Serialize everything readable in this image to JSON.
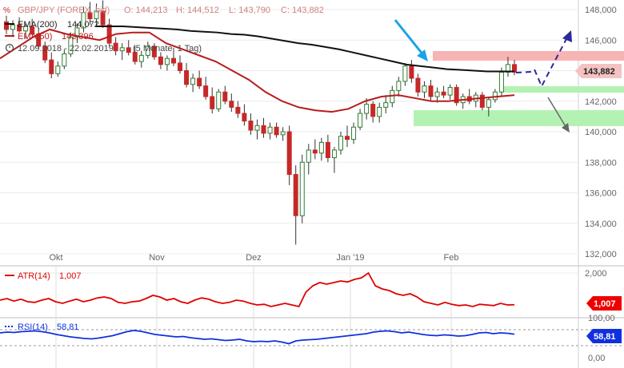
{
  "header": {
    "symbol_line": "GBP/JPY (FOREX, bid)",
    "open": "O: 144,213",
    "high": "H: 144,512",
    "low": "L: 143,790",
    "close": "C: 143,882",
    "ema200_label": "EMA(200)",
    "ema200_value": "144,072",
    "ema50_label": "EMA(50)",
    "ema50_value": "142,396",
    "date_range": "12.09.2018 - 22.02.2019",
    "period": "(5 Monate, 1 Tag)"
  },
  "colors": {
    "up": "#2e7d32",
    "down": "#c62828",
    "ema200": "#111111",
    "ema50": "#b71c1c",
    "atr": "#e00000",
    "rsi": "#1030e0",
    "resistance_zone": "#f7b4b4",
    "support_zone": "#b4f2b4",
    "arrow_cyan": "#1aa3e8",
    "arrow_forecast": "#2a2a9a",
    "arrow_grey": "#666666"
  },
  "chart_data": [
    {
      "type": "candlestick",
      "xlabels": [
        "Okt",
        "Nov",
        "Dez",
        "Jan '19",
        "Feb"
      ],
      "ylabels": [
        "148,000",
        "146,000",
        "144,000",
        "142,000",
        "140,000",
        "138,000",
        "136,000",
        "134,000",
        "132,000"
      ],
      "ylim": [
        132,
        148
      ],
      "last_price": "143,882",
      "series": [
        {
          "name": "EMA(200)",
          "values": [
            146.9,
            146.9,
            146.9,
            146.85,
            146.8,
            146.75,
            146.7,
            146.6,
            146.55,
            146.5,
            146.4,
            146.35,
            146.25,
            146.1,
            145.95,
            145.8,
            145.7,
            145.55,
            145.4,
            145.2,
            145.0,
            144.8,
            144.6,
            144.4,
            144.3,
            144.2,
            144.1,
            144.05,
            144.0,
            143.95,
            143.95,
            143.95
          ]
        },
        {
          "name": "EMA(50)",
          "values": [
            144.8,
            145.5,
            146.2,
            146.7,
            146.4,
            146.2,
            146.0,
            146.4,
            146.5,
            146.5,
            145.8,
            145.4,
            145.0,
            144.6,
            144.0,
            143.4,
            142.6,
            142.0,
            141.6,
            141.4,
            141.3,
            141.5,
            142.0,
            142.3,
            142.4,
            142.2,
            142.0,
            142.0,
            142.1,
            142.2,
            142.3,
            142.4
          ]
        }
      ],
      "candles": [
        {
          "o": 147.2,
          "h": 147.6,
          "l": 146.4,
          "c": 146.7
        },
        {
          "o": 146.7,
          "h": 147.3,
          "l": 146.2,
          "c": 147.0
        },
        {
          "o": 147.0,
          "h": 147.5,
          "l": 146.5,
          "c": 146.6
        },
        {
          "o": 146.6,
          "h": 147.1,
          "l": 146.1,
          "c": 146.9
        },
        {
          "o": 146.9,
          "h": 147.4,
          "l": 146.3,
          "c": 146.4
        },
        {
          "o": 146.4,
          "h": 146.8,
          "l": 145.5,
          "c": 145.6
        },
        {
          "o": 145.6,
          "h": 145.9,
          "l": 144.5,
          "c": 144.7
        },
        {
          "o": 144.7,
          "h": 145.2,
          "l": 143.5,
          "c": 143.8
        },
        {
          "o": 143.8,
          "h": 144.6,
          "l": 143.6,
          "c": 144.3
        },
        {
          "o": 144.3,
          "h": 145.4,
          "l": 144.1,
          "c": 145.1
        },
        {
          "o": 145.1,
          "h": 146.5,
          "l": 144.9,
          "c": 146.2
        },
        {
          "o": 146.2,
          "h": 147.1,
          "l": 145.8,
          "c": 146.8
        },
        {
          "o": 146.8,
          "h": 148.2,
          "l": 146.5,
          "c": 147.8
        },
        {
          "o": 147.8,
          "h": 148.5,
          "l": 147.0,
          "c": 147.4
        },
        {
          "o": 147.4,
          "h": 148.4,
          "l": 146.9,
          "c": 147.9
        },
        {
          "o": 147.9,
          "h": 148.6,
          "l": 146.8,
          "c": 147.0
        },
        {
          "o": 147.0,
          "h": 147.4,
          "l": 145.6,
          "c": 145.8
        },
        {
          "o": 145.8,
          "h": 146.2,
          "l": 145.0,
          "c": 145.3
        },
        {
          "o": 145.3,
          "h": 145.8,
          "l": 144.7,
          "c": 145.5
        },
        {
          "o": 145.5,
          "h": 146.0,
          "l": 145.0,
          "c": 145.2
        },
        {
          "o": 145.2,
          "h": 145.6,
          "l": 144.4,
          "c": 144.6
        },
        {
          "o": 144.6,
          "h": 145.3,
          "l": 144.2,
          "c": 145.0
        },
        {
          "o": 145.0,
          "h": 145.9,
          "l": 144.8,
          "c": 145.6
        },
        {
          "o": 145.6,
          "h": 145.8,
          "l": 144.7,
          "c": 144.9
        },
        {
          "o": 144.9,
          "h": 145.2,
          "l": 144.1,
          "c": 144.4
        },
        {
          "o": 144.4,
          "h": 145.0,
          "l": 144.0,
          "c": 144.8
        },
        {
          "o": 144.8,
          "h": 145.5,
          "l": 144.3,
          "c": 144.5
        },
        {
          "o": 144.5,
          "h": 145.0,
          "l": 143.8,
          "c": 144.0
        },
        {
          "o": 144.0,
          "h": 144.5,
          "l": 142.9,
          "c": 143.1
        },
        {
          "o": 143.1,
          "h": 143.8,
          "l": 142.6,
          "c": 143.5
        },
        {
          "o": 143.5,
          "h": 144.0,
          "l": 142.8,
          "c": 143.0
        },
        {
          "o": 143.0,
          "h": 143.6,
          "l": 142.1,
          "c": 142.3
        },
        {
          "o": 142.3,
          "h": 142.9,
          "l": 141.2,
          "c": 141.5
        },
        {
          "o": 141.5,
          "h": 142.8,
          "l": 141.3,
          "c": 142.6
        },
        {
          "o": 142.6,
          "h": 143.0,
          "l": 141.8,
          "c": 142.0
        },
        {
          "o": 142.0,
          "h": 142.5,
          "l": 141.3,
          "c": 141.6
        },
        {
          "o": 141.6,
          "h": 142.0,
          "l": 140.9,
          "c": 141.2
        },
        {
          "o": 141.2,
          "h": 141.8,
          "l": 140.4,
          "c": 140.7
        },
        {
          "o": 140.7,
          "h": 141.2,
          "l": 139.8,
          "c": 140.1
        },
        {
          "o": 140.1,
          "h": 140.8,
          "l": 139.5,
          "c": 140.4
        },
        {
          "o": 140.4,
          "h": 140.9,
          "l": 139.6,
          "c": 139.9
        },
        {
          "o": 139.9,
          "h": 140.6,
          "l": 139.5,
          "c": 140.3
        },
        {
          "o": 140.3,
          "h": 140.6,
          "l": 139.6,
          "c": 139.8
        },
        {
          "o": 139.8,
          "h": 140.3,
          "l": 139.4,
          "c": 140.0
        },
        {
          "o": 140.0,
          "h": 140.4,
          "l": 136.5,
          "c": 137.2
        },
        {
          "o": 137.2,
          "h": 137.8,
          "l": 132.6,
          "c": 134.5
        },
        {
          "o": 134.5,
          "h": 138.5,
          "l": 134.0,
          "c": 138.0
        },
        {
          "o": 138.0,
          "h": 139.2,
          "l": 137.2,
          "c": 138.8
        },
        {
          "o": 138.8,
          "h": 139.5,
          "l": 138.2,
          "c": 138.6
        },
        {
          "o": 138.6,
          "h": 139.6,
          "l": 138.1,
          "c": 139.3
        },
        {
          "o": 139.3,
          "h": 139.8,
          "l": 138.0,
          "c": 138.3
        },
        {
          "o": 138.3,
          "h": 139.0,
          "l": 137.3,
          "c": 138.8
        },
        {
          "o": 138.8,
          "h": 140.0,
          "l": 138.5,
          "c": 139.7
        },
        {
          "o": 139.7,
          "h": 140.4,
          "l": 139.0,
          "c": 139.5
        },
        {
          "o": 139.5,
          "h": 140.6,
          "l": 139.2,
          "c": 140.3
        },
        {
          "o": 140.3,
          "h": 141.5,
          "l": 140.1,
          "c": 141.2
        },
        {
          "o": 141.2,
          "h": 142.2,
          "l": 140.8,
          "c": 141.8
        },
        {
          "o": 141.8,
          "h": 142.0,
          "l": 140.6,
          "c": 141.0
        },
        {
          "o": 141.0,
          "h": 141.9,
          "l": 140.6,
          "c": 141.6
        },
        {
          "o": 141.6,
          "h": 142.4,
          "l": 141.2,
          "c": 141.9
        },
        {
          "o": 141.9,
          "h": 143.0,
          "l": 141.6,
          "c": 142.7
        },
        {
          "o": 142.7,
          "h": 143.6,
          "l": 142.3,
          "c": 143.3
        },
        {
          "o": 143.3,
          "h": 144.5,
          "l": 143.0,
          "c": 144.3
        },
        {
          "o": 144.3,
          "h": 144.7,
          "l": 143.2,
          "c": 143.5
        },
        {
          "o": 143.5,
          "h": 143.8,
          "l": 142.3,
          "c": 142.6
        },
        {
          "o": 142.6,
          "h": 143.3,
          "l": 142.2,
          "c": 143.0
        },
        {
          "o": 143.0,
          "h": 143.4,
          "l": 142.0,
          "c": 142.3
        },
        {
          "o": 142.3,
          "h": 142.9,
          "l": 141.9,
          "c": 142.6
        },
        {
          "o": 142.6,
          "h": 143.0,
          "l": 142.2,
          "c": 142.4
        },
        {
          "o": 142.4,
          "h": 143.1,
          "l": 142.1,
          "c": 142.9
        },
        {
          "o": 142.9,
          "h": 143.1,
          "l": 141.7,
          "c": 141.9
        },
        {
          "o": 141.9,
          "h": 142.5,
          "l": 141.5,
          "c": 142.3
        },
        {
          "o": 142.3,
          "h": 142.8,
          "l": 141.8,
          "c": 142.0
        },
        {
          "o": 142.0,
          "h": 142.6,
          "l": 141.6,
          "c": 142.4
        },
        {
          "o": 142.4,
          "h": 142.6,
          "l": 141.4,
          "c": 141.6
        },
        {
          "o": 141.6,
          "h": 142.3,
          "l": 141.0,
          "c": 142.1
        },
        {
          "o": 142.1,
          "h": 142.8,
          "l": 141.9,
          "c": 142.6
        },
        {
          "o": 142.6,
          "h": 144.2,
          "l": 142.3,
          "c": 143.9
        },
        {
          "o": 143.9,
          "h": 144.9,
          "l": 143.6,
          "c": 144.4
        },
        {
          "o": 144.4,
          "h": 144.7,
          "l": 143.7,
          "c": 143.9
        }
      ]
    },
    {
      "type": "line",
      "name": "ATR(14)",
      "value_label": "1,007",
      "ylabels": [
        "2,000"
      ],
      "values": [
        1.15,
        1.2,
        1.12,
        1.18,
        1.1,
        1.08,
        1.15,
        1.2,
        1.1,
        1.05,
        1.12,
        1.18,
        1.1,
        1.15,
        1.22,
        1.25,
        1.2,
        1.08,
        1.05,
        1.1,
        1.12,
        1.2,
        1.3,
        1.25,
        1.15,
        1.2,
        1.1,
        1.05,
        1.15,
        1.22,
        1.18,
        1.1,
        1.05,
        1.08,
        1.15,
        1.12,
        1.05,
        1.0,
        1.02,
        0.95,
        1.0,
        1.05,
        1.0,
        0.95,
        1.4,
        1.6,
        1.7,
        1.65,
        1.7,
        1.75,
        1.72,
        1.8,
        1.85,
        2.0,
        1.6,
        1.5,
        1.45,
        1.35,
        1.3,
        1.35,
        1.25,
        1.1,
        1.05,
        1.0,
        1.08,
        1.02,
        0.98,
        1.0,
        0.95,
        1.02,
        1.0,
        0.98,
        1.05,
        1.0,
        1.007
      ]
    },
    {
      "type": "line",
      "name": "RSI(14)",
      "value_label": "58,81",
      "ylabels": [
        "100,00",
        "0,00"
      ],
      "values": [
        62,
        64,
        63,
        65,
        66,
        67,
        65,
        62,
        58,
        55,
        52,
        50,
        48,
        47,
        49,
        52,
        55,
        60,
        65,
        68,
        66,
        62,
        58,
        56,
        54,
        52,
        53,
        50,
        48,
        46,
        47,
        45,
        43,
        44,
        46,
        42,
        40,
        41,
        40,
        42,
        39,
        35,
        42,
        44,
        45,
        46,
        48,
        50,
        52,
        54,
        56,
        58,
        60,
        64,
        66,
        67,
        65,
        62,
        64,
        61,
        58,
        56,
        55,
        57,
        56,
        54,
        55,
        58,
        62,
        63,
        60,
        62,
        61,
        58.81
      ]
    }
  ],
  "annotations": {
    "resistance_zone": [
      143.9,
      144.9
    ],
    "support_zone_1": [
      142.2,
      142.6
    ],
    "support_zone_2": [
      140.2,
      141.3
    ],
    "forecast_path": [
      [
        143.9,
        143.85
      ],
      [
        143.95,
        142.6
      ],
      [
        146.2,
        146.2
      ]
    ],
    "grey_arrow_target": 140.0
  }
}
